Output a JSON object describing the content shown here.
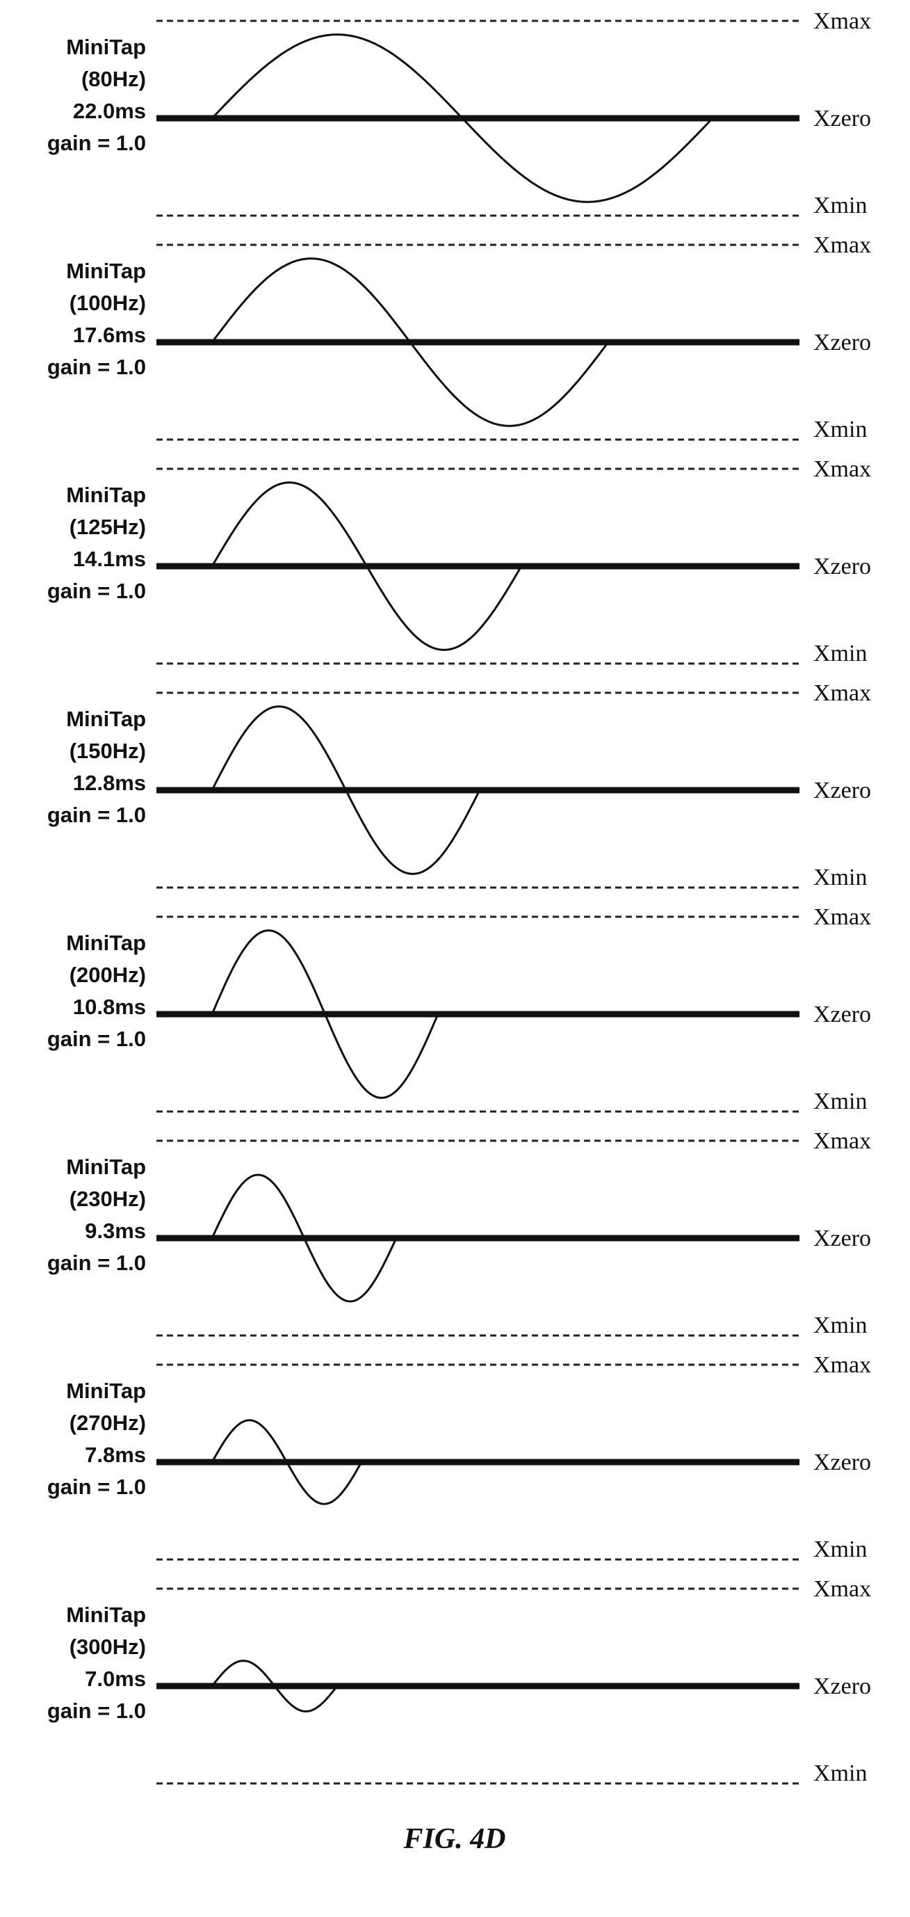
{
  "figure": {
    "caption": "FIG. 4D"
  },
  "axis_labels": {
    "max": "Xmax",
    "zero": "Xzero",
    "min": "Xmin"
  },
  "panels": [
    {
      "name": "MiniTap",
      "frequency": "(80Hz)",
      "duration": "22.0ms",
      "gain": "gain = 1.0",
      "amplitude": 0.86
    },
    {
      "name": "MiniTap",
      "frequency": "(100Hz)",
      "duration": "17.6ms",
      "gain": "gain = 1.0",
      "amplitude": 0.86
    },
    {
      "name": "MiniTap",
      "frequency": "(125Hz)",
      "duration": "14.1ms",
      "gain": "gain = 1.0",
      "amplitude": 0.86
    },
    {
      "name": "MiniTap",
      "frequency": "(150Hz)",
      "duration": "12.8ms",
      "gain": "gain = 1.0",
      "amplitude": 0.86
    },
    {
      "name": "MiniTap",
      "frequency": "(200Hz)",
      "duration": "10.8ms",
      "gain": "gain = 1.0",
      "amplitude": 0.86
    },
    {
      "name": "MiniTap",
      "frequency": "(230Hz)",
      "duration": "9.3ms",
      "gain": "gain = 1.0",
      "amplitude": 0.65
    },
    {
      "name": "MiniTap",
      "frequency": "(270Hz)",
      "duration": "7.8ms",
      "gain": "gain = 1.0",
      "amplitude": 0.43
    },
    {
      "name": "MiniTap",
      "frequency": "(300Hz)",
      "duration": "7.0ms",
      "gain": "gain = 1.0",
      "amplitude": 0.26
    }
  ]
}
